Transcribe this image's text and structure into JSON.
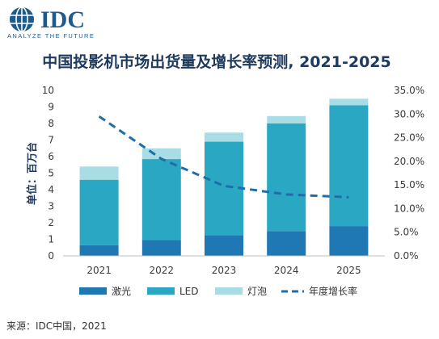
{
  "logo": {
    "brand": "IDC",
    "tagline": "ANALYZE THE FUTURE"
  },
  "source": "来源：IDC中国，2021",
  "colors": {
    "laser": "#1f77b4",
    "led": "#2aa7c2",
    "bulb": "#a9dde6",
    "growth": "#1f6ea8",
    "logo": "#1d5b8f"
  },
  "chart_data": {
    "type": "bar",
    "stacked": true,
    "title": "中国投影机市场出货量及增长率预测, 2021-2025",
    "ylabel": "单位：百万台",
    "categories": [
      "2021",
      "2022",
      "2023",
      "2024",
      "2025"
    ],
    "ylim": [
      0,
      10
    ],
    "yticks": [
      "0",
      "1",
      "2",
      "3",
      "4",
      "5",
      "6",
      "7",
      "8",
      "9",
      "10"
    ],
    "y2lim": [
      0,
      35
    ],
    "y2ticks": [
      "0.0%",
      "5.0%",
      "10.0%",
      "15.0%",
      "20.0%",
      "25.0%",
      "30.0%",
      "35.0%"
    ],
    "series": [
      {
        "name": "激光",
        "values": [
          0.65,
          0.95,
          1.25,
          1.5,
          1.8
        ]
      },
      {
        "name": "LED",
        "values": [
          3.95,
          4.9,
          5.65,
          6.5,
          7.3
        ]
      },
      {
        "name": "灯泡",
        "values": [
          0.8,
          0.65,
          0.55,
          0.45,
          0.4
        ]
      }
    ],
    "line": {
      "name": "年度增长率",
      "values": [
        29.5,
        20.5,
        14.8,
        13.0,
        12.4
      ]
    },
    "legend_position": "bottom"
  }
}
